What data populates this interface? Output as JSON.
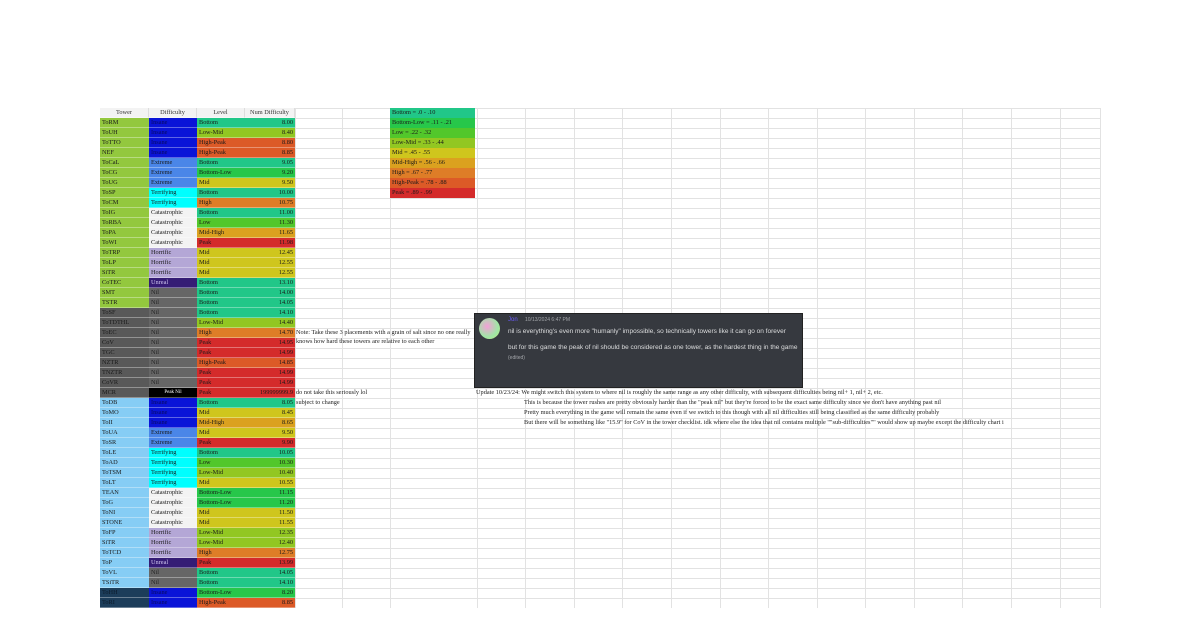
{
  "headers": [
    "Tower",
    "Difficulty",
    "Level",
    "Num Difficulty"
  ],
  "difficulty_colors": {
    "Insane": "#0a14d8",
    "Extreme": "#4a86e8",
    "Terrifying": "#00ffff",
    "Catastrophic": "#f3f3f3",
    "Horrific": "#b4a7d6",
    "Unreal": "#351c75",
    "Nil": "#666666",
    "Peak Nil": "#000000"
  },
  "level_colors": {
    "Bottom": "#21c788",
    "Bottom-Low": "#27c74a",
    "Low": "#52c72b",
    "Low-Mid": "#92c722",
    "Mid": "#cfc61d",
    "Mid-High": "#dba11f",
    "High": "#de7d27",
    "High-Peak": "#dc5a27",
    "Peak": "#d42b2b"
  },
  "tower_group_colors": {
    "lime": "#93c83e",
    "gray": "#595959",
    "blue": "#86cdf5",
    "navy": "#1c3d5a"
  },
  "rows": [
    {
      "tower": "ToRM",
      "group": "lime",
      "difficulty": "Insane",
      "level": "Bottom",
      "num": "8.00"
    },
    {
      "tower": "ToUH",
      "group": "lime",
      "difficulty": "Insane",
      "level": "Low-Mid",
      "num": "8.40"
    },
    {
      "tower": "ToTTO",
      "group": "lime",
      "difficulty": "Insane",
      "level": "High-Peak",
      "num": "8.80"
    },
    {
      "tower": "NEF",
      "group": "lime",
      "difficulty": "Insane",
      "level": "High-Peak",
      "num": "8.85"
    },
    {
      "tower": "ToCaL",
      "group": "lime",
      "difficulty": "Extreme",
      "level": "Bottom",
      "num": "9.05"
    },
    {
      "tower": "ToCG",
      "group": "lime",
      "difficulty": "Extreme",
      "level": "Bottom-Low",
      "num": "9.20"
    },
    {
      "tower": "ToUG",
      "group": "lime",
      "difficulty": "Extreme",
      "level": "Mid",
      "num": "9.50"
    },
    {
      "tower": "ToSP",
      "group": "lime",
      "difficulty": "Terrifying",
      "level": "Bottom",
      "num": "10.00"
    },
    {
      "tower": "ToCM",
      "group": "lime",
      "difficulty": "Terrifying",
      "level": "High",
      "num": "10.75"
    },
    {
      "tower": "ToIG",
      "group": "lime",
      "difficulty": "Catastrophic",
      "level": "Bottom",
      "num": "11.00"
    },
    {
      "tower": "ToRBA",
      "group": "lime",
      "difficulty": "Catastrophic",
      "level": "Low",
      "num": "11.30"
    },
    {
      "tower": "ToPA",
      "group": "lime",
      "difficulty": "Catastrophic",
      "level": "Mid-High",
      "num": "11.65"
    },
    {
      "tower": "ToWI",
      "group": "lime",
      "difficulty": "Catastrophic",
      "level": "Peak",
      "num": "11.98"
    },
    {
      "tower": "ToTRP",
      "group": "lime",
      "difficulty": "Horrific",
      "level": "Mid",
      "num": "12.45"
    },
    {
      "tower": "ToLP",
      "group": "lime",
      "difficulty": "Horrific",
      "level": "Mid",
      "num": "12.55"
    },
    {
      "tower": "SiTR",
      "group": "lime",
      "difficulty": "Horrific",
      "level": "Mid",
      "num": "12.55"
    },
    {
      "tower": "CoTEC",
      "group": "lime",
      "difficulty": "Unreal",
      "level": "Bottom",
      "num": "13.10"
    },
    {
      "tower": "SMT",
      "group": "lime",
      "difficulty": "Nil",
      "level": "Bottom",
      "num": "14.00"
    },
    {
      "tower": "TSTR",
      "group": "lime",
      "difficulty": "Nil",
      "level": "Bottom",
      "num": "14.05"
    },
    {
      "tower": "ToSF",
      "group": "gray",
      "difficulty": "Nil",
      "level": "Bottom",
      "num": "14.10"
    },
    {
      "tower": "ToTDTHL",
      "group": "gray",
      "difficulty": "Nil",
      "level": "Low-Mid",
      "num": "14.40"
    },
    {
      "tower": "ToEC",
      "group": "gray",
      "difficulty": "Nil",
      "level": "High",
      "num": "14.70"
    },
    {
      "tower": "CoV",
      "group": "gray",
      "difficulty": "Nil",
      "level": "Peak",
      "num": "14.95"
    },
    {
      "tower": "TGC",
      "group": "gray",
      "difficulty": "Nil",
      "level": "Peak",
      "num": "14.99"
    },
    {
      "tower": "NZTR",
      "group": "gray",
      "difficulty": "Nil",
      "level": "High-Peak",
      "num": "14.85"
    },
    {
      "tower": "TNZTR",
      "group": "gray",
      "difficulty": "Nil",
      "level": "Peak",
      "num": "14.99"
    },
    {
      "tower": "CoVR",
      "group": "gray",
      "difficulty": "Nil",
      "level": "Peak",
      "num": "14.99"
    },
    {
      "tower": "MCR",
      "group": "gray",
      "difficulty": "Peak Nil",
      "level": "Peak",
      "num": "199999999.9"
    },
    {
      "tower": "ToDB",
      "group": "blue",
      "difficulty": "Insane",
      "level": "Bottom",
      "num": "8.05"
    },
    {
      "tower": "ToMO",
      "group": "blue",
      "difficulty": "Insane",
      "level": "Mid",
      "num": "8.45"
    },
    {
      "tower": "ToII",
      "group": "blue",
      "difficulty": "Insane",
      "level": "Mid-High",
      "num": "8.65"
    },
    {
      "tower": "ToUA",
      "group": "blue",
      "difficulty": "Extreme",
      "level": "Mid",
      "num": "9.50"
    },
    {
      "tower": "ToSR",
      "group": "blue",
      "difficulty": "Extreme",
      "level": "Peak",
      "num": "9.90"
    },
    {
      "tower": "ToLE",
      "group": "blue",
      "difficulty": "Terrifying",
      "level": "Bottom",
      "num": "10.05"
    },
    {
      "tower": "ToAD",
      "group": "blue",
      "difficulty": "Terrifying",
      "level": "Low",
      "num": "10.30"
    },
    {
      "tower": "ToTSM",
      "group": "blue",
      "difficulty": "Terrifying",
      "level": "Low-Mid",
      "num": "10.40"
    },
    {
      "tower": "ToLT",
      "group": "blue",
      "difficulty": "Terrifying",
      "level": "Mid",
      "num": "10.55"
    },
    {
      "tower": "TEAN",
      "group": "blue",
      "difficulty": "Catastrophic",
      "level": "Bottom-Low",
      "num": "11.15"
    },
    {
      "tower": "ToG",
      "group": "blue",
      "difficulty": "Catastrophic",
      "level": "Bottom-Low",
      "num": "11.20"
    },
    {
      "tower": "ToNI",
      "group": "blue",
      "difficulty": "Catastrophic",
      "level": "Mid",
      "num": "11.50"
    },
    {
      "tower": "STONE",
      "group": "blue",
      "difficulty": "Catastrophic",
      "level": "Mid",
      "num": "11.55"
    },
    {
      "tower": "ToFP",
      "group": "blue",
      "difficulty": "Horrific",
      "level": "Low-Mid",
      "num": "12.35"
    },
    {
      "tower": "SiTR",
      "group": "blue",
      "difficulty": "Horrific",
      "level": "Low-Mid",
      "num": "12.40"
    },
    {
      "tower": "ToTCD",
      "group": "blue",
      "difficulty": "Horrific",
      "level": "High",
      "num": "12.75"
    },
    {
      "tower": "ToP",
      "group": "blue",
      "difficulty": "Unreal",
      "level": "Peak",
      "num": "13.99"
    },
    {
      "tower": "ToVL",
      "group": "blue",
      "difficulty": "Nil",
      "level": "Bottom",
      "num": "14.05"
    },
    {
      "tower": "TSiTR",
      "group": "blue",
      "difficulty": "Nil",
      "level": "Bottom",
      "num": "14.10"
    },
    {
      "tower": "ToHH",
      "group": "navy",
      "difficulty": "Insane",
      "level": "Bottom-Low",
      "num": "8.20"
    },
    {
      "tower": "ToRI",
      "group": "navy",
      "difficulty": "Insane",
      "level": "High-Peak",
      "num": "8.85"
    }
  ],
  "legend": [
    {
      "text": "Bottom = .0 - .10",
      "level": "Bottom"
    },
    {
      "text": "Bottom-Low = .11 - .21",
      "level": "Bottom-Low"
    },
    {
      "text": "Low = .22 - .32",
      "level": "Low"
    },
    {
      "text": "Low-Mid = .33 - .44",
      "level": "Low-Mid"
    },
    {
      "text": "Mid = .45 - .55",
      "level": "Mid"
    },
    {
      "text": "Mid-High = .56 - .66",
      "level": "Mid-High"
    },
    {
      "text": "High = .67 - .77",
      "level": "High"
    },
    {
      "text": "High-Peak = .78 - .88",
      "level": "High-Peak"
    },
    {
      "text": "Peak = .89 - .99",
      "level": "Peak"
    }
  ],
  "notes": {
    "placement_note": "Note: Take these 3 placements with a grain of salt since no one really knows how hard these towers are relative to each other",
    "joke": "do not take this seriously lol",
    "subject": "subject to change",
    "update": "Update 10/23/24: We might switch this system to where nil is roughly the same range as any other difficulty, with subsequent difficulties being nil+ 1, nil+ 2, etc.",
    "line2": "This is because the tower rushes are pretty obviously harder than the \"peak nil\" but they're forced to be the exact same difficulty since we don't have anything past nil",
    "line3": "Pretty much everything in the game will remain the same even if we switch to this though with all nil difficulties still being classified as the same difficulty probably",
    "line4": "But there will be something like \"15.9\" for CoV in the tower checklist. idk where else the idea that nil contains multiple \"\"sub-difficulties\"\" would show up maybe except the difficulty chart i"
  },
  "discord": {
    "username": "Jon",
    "timestamp": "10/13/2024 6:47 PM",
    "message_1": "nil is everything's even more \"humanly\" impossible, so technically towers like it can go on forever",
    "message_2": "but for this game the peak of nil should be considered as one tower, as the hardest thing in the game",
    "edited": "(edited)"
  }
}
